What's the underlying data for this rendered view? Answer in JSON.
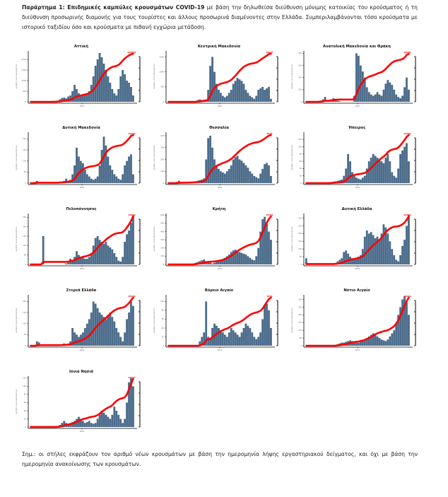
{
  "intro": {
    "bold": "Παράρτημα 1: Επιδημικές καμπύλες κρουσμάτων COVID-19",
    "text": " με βάση την δηλωθείσα διεύθυνση μόνιμης κατοικίας του κρούσματος ή τη διεύθυνση προσωρινής διαμονής για τους τουρίστες και άλλους προσωρινά διαμένοντες στην Ελλάδα. Συμπεριλαμβάνονται τόσο κρούσματα με ιστορικό ταξιδίου όσο και κρούσματα με πιθανή εγχώρια μετάδοση."
  },
  "note": "Σημ.: οι στήλες εκφράζουν τον αριθμό νέων κρουσμάτων με βάση την ημερομηνία λήψης εργαστηριακού δείγματος, και όχι με βάση την ημερομηνία ανακοίνωσης των κρουσμάτων.",
  "colors": {
    "bars": "#4a6b8a",
    "cumulative": "#ff0000",
    "axis": "#000000"
  },
  "chart_data": [
    {
      "type": "bar",
      "title": "Αττική",
      "xtick": "2021",
      "ylabel": "Αριθμός νέων κρουσμάτων",
      "yticks": [
        0,
        500,
        1000,
        1500,
        2000
      ],
      "ylim": [
        0,
        2400
      ],
      "y2label": "Σωρευτικά κρούσματα",
      "profile": [
        0,
        0,
        0,
        0,
        0,
        0,
        0,
        0,
        0,
        5,
        10,
        20,
        30,
        60,
        120,
        180,
        200,
        160,
        250,
        300,
        500,
        800,
        600,
        400,
        300,
        280,
        300,
        350,
        500,
        800,
        1200,
        1700,
        2000,
        2300,
        2100,
        1800,
        1500,
        1200,
        900,
        600,
        400,
        300,
        600,
        1200,
        1500,
        1300,
        1000,
        900,
        700,
        300
      ],
      "cum_end_label": "XXXXXX"
    },
    {
      "type": "bar",
      "title": "Κεντρική Μακεδονία",
      "xtick": "2021",
      "yticks": [
        0,
        500,
        1000,
        1500
      ],
      "ylim": [
        0,
        1700
      ],
      "profile": [
        0,
        0,
        0,
        0,
        0,
        0,
        0,
        0,
        0,
        0,
        0,
        0,
        0,
        0,
        60,
        80,
        60,
        70,
        80,
        400,
        1200,
        1500,
        1000,
        600,
        400,
        300,
        200,
        150,
        200,
        300,
        400,
        600,
        700,
        800,
        750,
        700,
        600,
        400,
        300,
        200,
        150,
        100,
        200,
        400,
        450,
        500,
        400,
        450,
        500,
        100
      ],
      "cum_end_label": "XXXXX"
    },
    {
      "type": "bar",
      "title": "Ανατολική Μακεδονία και Θράκη",
      "xtick": "2021",
      "yticks": [
        0,
        100,
        200,
        300,
        400
      ],
      "ylim": [
        0,
        420
      ],
      "profile": [
        0,
        0,
        0,
        0,
        0,
        0,
        5,
        10,
        20,
        40,
        10,
        5,
        20,
        30,
        20,
        10,
        5,
        0,
        0,
        0,
        0,
        0,
        0,
        50,
        400,
        380,
        300,
        250,
        200,
        120,
        80,
        60,
        50,
        60,
        80,
        60,
        50,
        100,
        150,
        180,
        160,
        140,
        100,
        60,
        40,
        30,
        50,
        120,
        200,
        100
      ],
      "cum_end_label": "XXXXX"
    },
    {
      "type": "bar",
      "title": "Δυτική Μακεδονία",
      "xtick": "2021",
      "yticks": [
        0,
        50,
        100,
        150,
        200
      ],
      "ylim": [
        0,
        230
      ],
      "profile": [
        0,
        0,
        5,
        10,
        5,
        0,
        0,
        0,
        0,
        0,
        0,
        0,
        2,
        3,
        5,
        5,
        10,
        20,
        10,
        15,
        40,
        80,
        160,
        120,
        100,
        90,
        60,
        40,
        30,
        20,
        15,
        20,
        30,
        80,
        150,
        210,
        170,
        120,
        80,
        60,
        40,
        30,
        20,
        15,
        40,
        80,
        100,
        120,
        130,
        40
      ],
      "cum_end_label": "XXXXX"
    },
    {
      "type": "bar",
      "title": "Θεσσαλία",
      "xtick": "2021",
      "yticks": [
        0,
        100,
        200,
        300,
        400
      ],
      "ylim": [
        0,
        430
      ],
      "profile": [
        0,
        0,
        0,
        0,
        10,
        20,
        10,
        5,
        5,
        5,
        5,
        10,
        10,
        15,
        20,
        25,
        30,
        40,
        200,
        380,
        400,
        300,
        200,
        150,
        120,
        100,
        90,
        80,
        100,
        120,
        150,
        200,
        220,
        230,
        200,
        190,
        170,
        150,
        130,
        100,
        80,
        60,
        50,
        40,
        80,
        120,
        160,
        170,
        150,
        60
      ],
      "cum_end_label": "XXXX"
    },
    {
      "type": "bar",
      "title": "Ήπειρος",
      "xtick": "2021",
      "yticks": [
        0,
        20,
        40,
        60,
        80,
        100,
        120
      ],
      "ylim": [
        0,
        140
      ],
      "profile": [
        0,
        0,
        0,
        0,
        0,
        0,
        0,
        0,
        0,
        0,
        0,
        2,
        3,
        4,
        5,
        6,
        8,
        10,
        20,
        40,
        80,
        60,
        30,
        20,
        15,
        12,
        10,
        15,
        20,
        40,
        60,
        70,
        80,
        75,
        70,
        65,
        60,
        55,
        70,
        80,
        60,
        30,
        20,
        15,
        40,
        80,
        90,
        100,
        110,
        60
      ],
      "cum_end_label": "XXXXX"
    },
    {
      "type": "bar",
      "title": "Πελοπόννησος",
      "xtick": "2021",
      "yticks": [
        0,
        50,
        100,
        150,
        200,
        250
      ],
      "ylim": [
        0,
        270
      ],
      "profile": [
        0,
        0,
        0,
        0,
        0,
        0,
        150,
        0,
        0,
        0,
        0,
        0,
        0,
        0,
        0,
        0,
        0,
        5,
        10,
        30,
        20,
        40,
        70,
        50,
        40,
        35,
        30,
        30,
        40,
        60,
        100,
        140,
        150,
        130,
        120,
        110,
        120,
        100,
        90,
        80,
        60,
        40,
        20,
        15,
        40,
        120,
        160,
        180,
        220,
        260
      ],
      "cum_end_label": "XXXXX"
    },
    {
      "type": "bar",
      "title": "Κρήτη",
      "xtick": "2021",
      "yticks": [
        0,
        100,
        200,
        300,
        400,
        500,
        600
      ],
      "ylim": [
        0,
        620
      ],
      "profile": [
        0,
        0,
        0,
        0,
        0,
        0,
        0,
        0,
        0,
        0,
        0,
        0,
        10,
        20,
        30,
        40,
        50,
        60,
        40,
        30,
        20,
        10,
        20,
        30,
        40,
        50,
        60,
        80,
        100,
        120,
        150,
        170,
        180,
        160,
        150,
        140,
        130,
        120,
        100,
        80,
        60,
        50,
        100,
        200,
        400,
        550,
        580,
        500,
        400,
        300
      ],
      "cum_end_label": "XXXXX"
    },
    {
      "type": "bar",
      "title": "Δυτική Ελλάδα",
      "xtick": "2021",
      "yticks": [
        0,
        50,
        100,
        150,
        200,
        250,
        300
      ],
      "ylim": [
        0,
        330
      ],
      "profile": [
        40,
        0,
        0,
        0,
        0,
        0,
        0,
        0,
        0,
        0,
        0,
        0,
        0,
        0,
        10,
        20,
        30,
        40,
        80,
        90,
        70,
        50,
        40,
        30,
        40,
        50,
        60,
        100,
        180,
        220,
        200,
        210,
        190,
        170,
        180,
        160,
        200,
        260,
        240,
        200,
        150,
        100,
        60,
        30,
        20,
        60,
        120,
        160,
        250,
        320
      ],
      "cum_end_label": "XXXXX"
    },
    {
      "type": "bar",
      "title": "Στερεά Ελλάδα",
      "xtick": "2021",
      "yticks": [
        0,
        50,
        100,
        150,
        200
      ],
      "ylim": [
        0,
        230
      ],
      "profile": [
        0,
        0,
        0,
        20,
        15,
        5,
        0,
        0,
        0,
        0,
        0,
        0,
        0,
        0,
        2,
        5,
        10,
        5,
        10,
        20,
        80,
        60,
        50,
        40,
        50,
        60,
        80,
        100,
        120,
        150,
        200,
        190,
        170,
        150,
        140,
        130,
        120,
        140,
        150,
        130,
        110,
        80,
        60,
        40,
        20,
        60,
        120,
        150,
        200,
        180
      ],
      "cum_end_label": "XXXXX"
    },
    {
      "type": "bar",
      "title": "Βόρειο Αιγαίο",
      "xtick": "2021",
      "yticks": [
        0,
        20,
        40,
        60,
        80,
        100
      ],
      "ylim": [
        0,
        115
      ],
      "profile": [
        0,
        0,
        0,
        0,
        0,
        0,
        0,
        0,
        0,
        0,
        0,
        0,
        0,
        0,
        0,
        10,
        20,
        30,
        100,
        20,
        15,
        40,
        50,
        45,
        40,
        35,
        30,
        25,
        20,
        30,
        40,
        35,
        30,
        25,
        20,
        30,
        40,
        50,
        45,
        40,
        30,
        20,
        15,
        20,
        30,
        60,
        90,
        95,
        80,
        40
      ],
      "cum_end_label": "XXXX"
    },
    {
      "type": "bar",
      "title": "Νότιο Αιγαίο",
      "xtick": "2021",
      "yticks": [
        0,
        50,
        100,
        150,
        200,
        250,
        300
      ],
      "ylim": [
        0,
        330
      ],
      "profile": [
        0,
        0,
        0,
        0,
        0,
        0,
        0,
        0,
        0,
        0,
        0,
        0,
        0,
        0,
        5,
        10,
        15,
        20,
        20,
        25,
        30,
        35,
        30,
        25,
        20,
        20,
        25,
        30,
        40,
        50,
        60,
        70,
        80,
        70,
        60,
        50,
        40,
        35,
        30,
        40,
        60,
        80,
        100,
        150,
        200,
        250,
        300,
        320,
        280,
        200
      ],
      "cum_end_label": "XXXXX"
    },
    {
      "type": "bar",
      "title": "Ιόνια Νησιά",
      "xtick": "2021",
      "yticks": [
        0,
        20,
        40,
        60,
        80,
        100,
        120
      ],
      "ylim": [
        0,
        125
      ],
      "profile": [
        2,
        0,
        0,
        0,
        0,
        0,
        0,
        0,
        0,
        0,
        0,
        0,
        0,
        2,
        5,
        10,
        15,
        10,
        8,
        10,
        12,
        15,
        20,
        25,
        20,
        15,
        10,
        12,
        15,
        10,
        8,
        10,
        20,
        30,
        40,
        35,
        30,
        25,
        20,
        30,
        50,
        40,
        30,
        20,
        10,
        20,
        60,
        110,
        120,
        100
      ],
      "cum_end_label": "XXXXX"
    }
  ]
}
